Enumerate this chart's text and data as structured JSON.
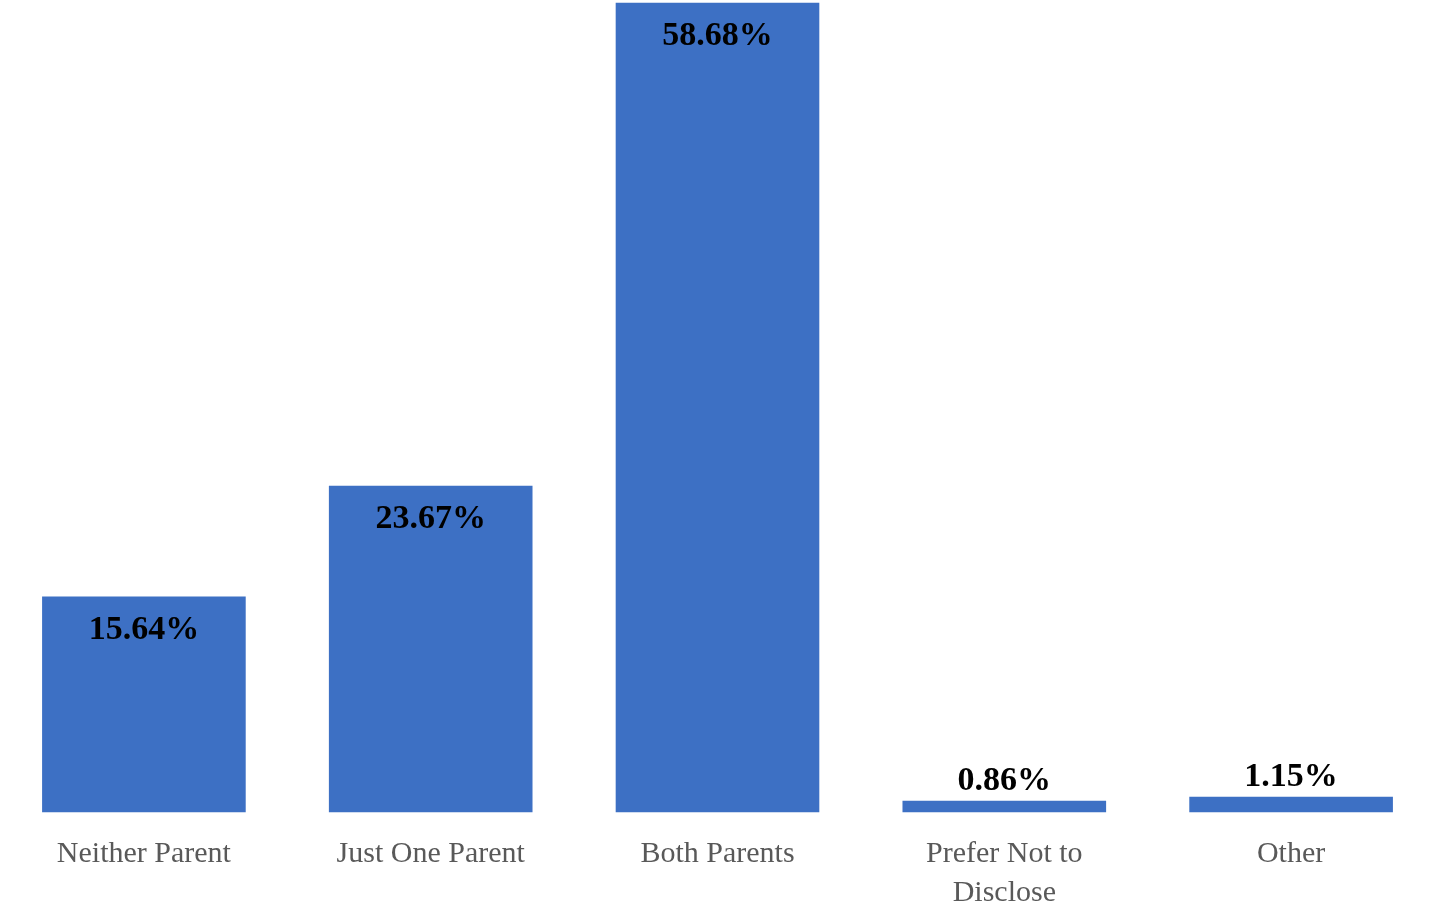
{
  "chart_data": {
    "type": "bar",
    "categories": [
      "Neither Parent",
      "Just One Parent",
      "Both Parents",
      "Prefer Not to Disclose",
      "Other"
    ],
    "values": [
      15.64,
      23.67,
      58.68,
      0.86,
      1.15
    ],
    "value_labels": [
      "15.64%",
      "23.67%",
      "58.68%",
      "0.86%",
      "1.15%"
    ],
    "color": "#3d70c4",
    "grid": false
  }
}
